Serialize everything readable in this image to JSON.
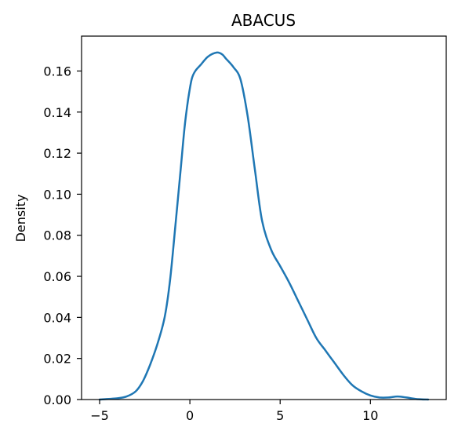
{
  "chart_data": {
    "type": "line",
    "title": "ABACUS",
    "xlabel": "",
    "ylabel": "Density",
    "xlim": [
      -6.0,
      14.2
    ],
    "ylim": [
      0.0,
      0.177
    ],
    "x_ticks": [
      -5,
      0,
      5,
      10
    ],
    "x_tick_labels": [
      "−5",
      "0",
      "5",
      "10"
    ],
    "y_ticks": [
      0.0,
      0.02,
      0.04,
      0.06,
      0.08,
      0.1,
      0.12,
      0.14,
      0.16
    ],
    "y_tick_labels": [
      "0.00",
      "0.02",
      "0.04",
      "0.06",
      "0.08",
      "0.10",
      "0.12",
      "0.14",
      "0.16"
    ],
    "grid": false,
    "legend": "none",
    "color": "#1f77b4",
    "series": [
      {
        "x": [
          -5.0,
          -4.0,
          -3.5,
          -3.0,
          -2.6,
          -2.2,
          -1.8,
          -1.4,
          -1.1,
          -0.8,
          -0.5,
          -0.3,
          -0.1,
          0.1,
          0.3,
          0.6,
          1.0,
          1.5,
          1.8,
          2.0,
          2.4,
          2.8,
          3.2,
          3.6,
          4.0,
          4.5,
          5.0,
          5.5,
          6.0,
          6.5,
          7.0,
          7.5,
          8.0,
          8.5,
          9.0,
          9.5,
          10.0,
          10.5,
          11.0,
          11.5,
          12.0,
          12.5,
          13.2
        ],
        "y": [
          0.0,
          0.0006,
          0.0015,
          0.004,
          0.009,
          0.017,
          0.027,
          0.04,
          0.058,
          0.085,
          0.113,
          0.132,
          0.146,
          0.156,
          0.16,
          0.163,
          0.167,
          0.169,
          0.168,
          0.166,
          0.162,
          0.156,
          0.138,
          0.112,
          0.087,
          0.073,
          0.065,
          0.057,
          0.048,
          0.039,
          0.03,
          0.024,
          0.018,
          0.012,
          0.007,
          0.004,
          0.002,
          0.001,
          0.001,
          0.0015,
          0.001,
          0.0003,
          0.0
        ]
      }
    ]
  }
}
